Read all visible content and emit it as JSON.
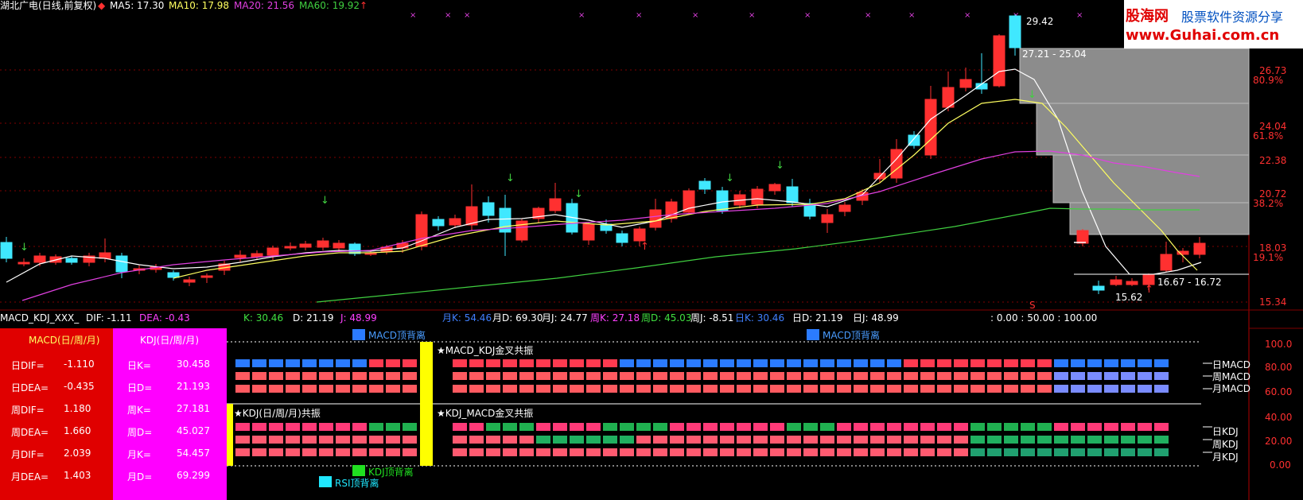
{
  "header": {
    "title": "湖北广电(日线,前复权)",
    "ma5": "MA5: 17.30",
    "ma10": "MA10: 17.98",
    "ma20": "MA20: 21.56",
    "ma60": "MA60: 19.92"
  },
  "watermark": {
    "brand": "股海网",
    "slogan": "股票软件资源分享",
    "url": "www.Guhai.com.cn"
  },
  "price_axis": {
    "labels": [
      "26.73",
      "80.9%",
      "24.04",
      "61.8%",
      "22.38",
      "20.72",
      "38.2%",
      "18.03",
      "19.1%",
      "15.34"
    ]
  },
  "annotations": {
    "high": "29.42",
    "range_top": "27.21 - 25.04",
    "range_low": "16.67 - 16.72",
    "low": "15.62"
  },
  "indicator_header": {
    "name": "MACD_KDJ_XXX_",
    "dif": "DIF: -1.11",
    "dea": "DEA: -0.43",
    "k": "K: 30.46",
    "d": "D: 21.19",
    "j": "J: 48.99",
    "mk": "月K: 54.46",
    "md": "月D: 69.30",
    "mj": "月J: 24.77",
    "wk": "周K: 27.18",
    "wd": "周D: 45.03",
    "wj": "周J: -8.51",
    "dk": "日K: 30.46",
    "dd": "日D: 21.19",
    "dj": "日J: 48.99",
    "levels": ": 0.00 : 50.00 : 100.00"
  },
  "macd_panel": {
    "title": "MACD(日/周/月)",
    "rows": [
      {
        "label": "日DIF=",
        "value": "-1.110"
      },
      {
        "label": "日DEA=",
        "value": "-0.435"
      },
      {
        "label": "周DIF=",
        "value": "1.180"
      },
      {
        "label": "周DEA=",
        "value": "1.660"
      },
      {
        "label": "月DIF=",
        "value": "2.039"
      },
      {
        "label": "月DEA=",
        "value": "1.403"
      }
    ]
  },
  "kdj_panel": {
    "title": "KDJ(日/周/月)",
    "rows": [
      {
        "label": "日K=",
        "value": "30.458"
      },
      {
        "label": "日D=",
        "value": "21.193"
      },
      {
        "label": "周K=",
        "value": "27.181"
      },
      {
        "label": "周D=",
        "value": "45.027"
      },
      {
        "label": "月K=",
        "value": "54.457"
      },
      {
        "label": "月D=",
        "value": "69.299"
      }
    ]
  },
  "signals": {
    "macd_top_div": "MACD顶背离",
    "macd_kdj_cross": "★MACD_KDJ金叉共振",
    "kdj_resonance": "★KDJ(日/周/月)共振",
    "kdj_macd_cross": "★KDJ_MACD金叉共振",
    "kdj_top_div": "KDJ顶背离",
    "rsi_top_div": "RSI顶背离"
  },
  "row_labels": {
    "d_macd": "日MACD",
    "w_macd": "周MACD",
    "m_macd": "月MACD",
    "d_kdj": "日KDJ",
    "w_kdj": "周KDJ",
    "m_kdj": "月KDJ"
  },
  "lower_axis": [
    "100.0",
    "80.00",
    "60.00",
    "40.00",
    "20.00",
    "0.00"
  ],
  "colors": {
    "up": "#ff3030",
    "down": "#40e8ff",
    "ma5": "#ffffff",
    "ma10": "#ffff60",
    "ma20": "#e040e0",
    "ma60": "#40d040"
  }
}
